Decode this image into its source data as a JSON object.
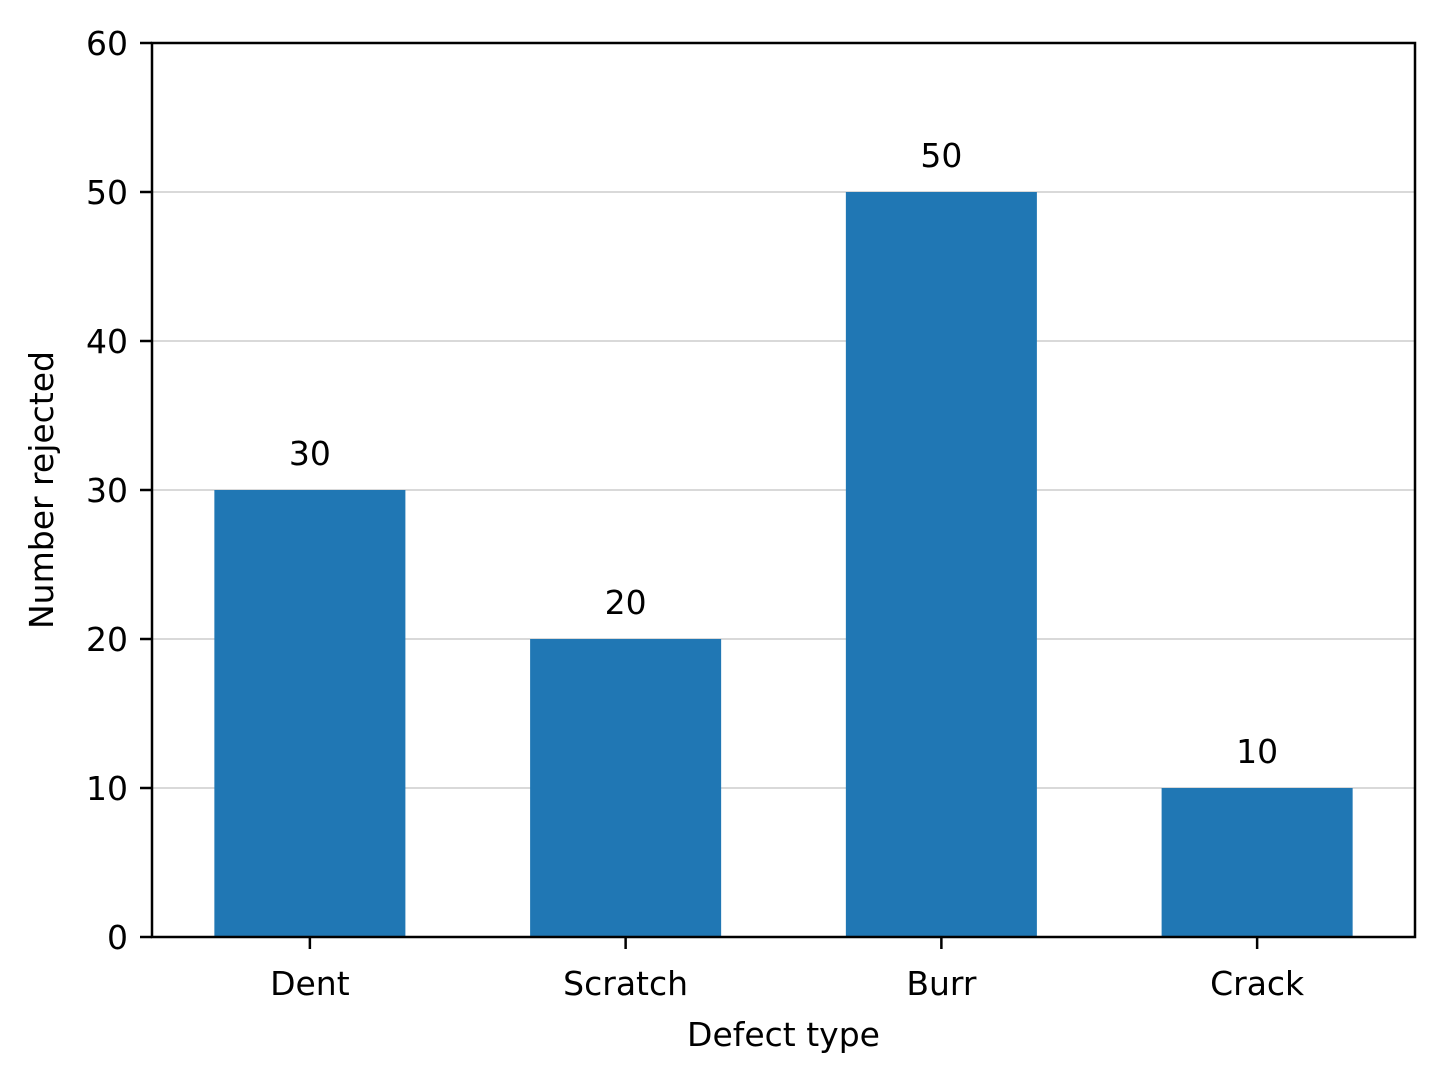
{
  "chart_data": {
    "type": "bar",
    "title": "",
    "xlabel": "Defect type",
    "ylabel": "Number rejected",
    "categories": [
      "Dent",
      "Scratch",
      "Burr",
      "Crack"
    ],
    "values": [
      30,
      20,
      50,
      10
    ],
    "data_labels": [
      "30",
      "20",
      "50",
      "10"
    ],
    "ylim": [
      0,
      60
    ],
    "yticks": [
      0,
      10,
      20,
      30,
      40,
      50,
      60
    ],
    "ytick_labels": [
      "0",
      "10",
      "20",
      "30",
      "40",
      "50",
      "60"
    ],
    "grid": "horizontal",
    "bar_color": "#2077b4",
    "grid_color": "#d9d9d9",
    "legend": "none"
  }
}
